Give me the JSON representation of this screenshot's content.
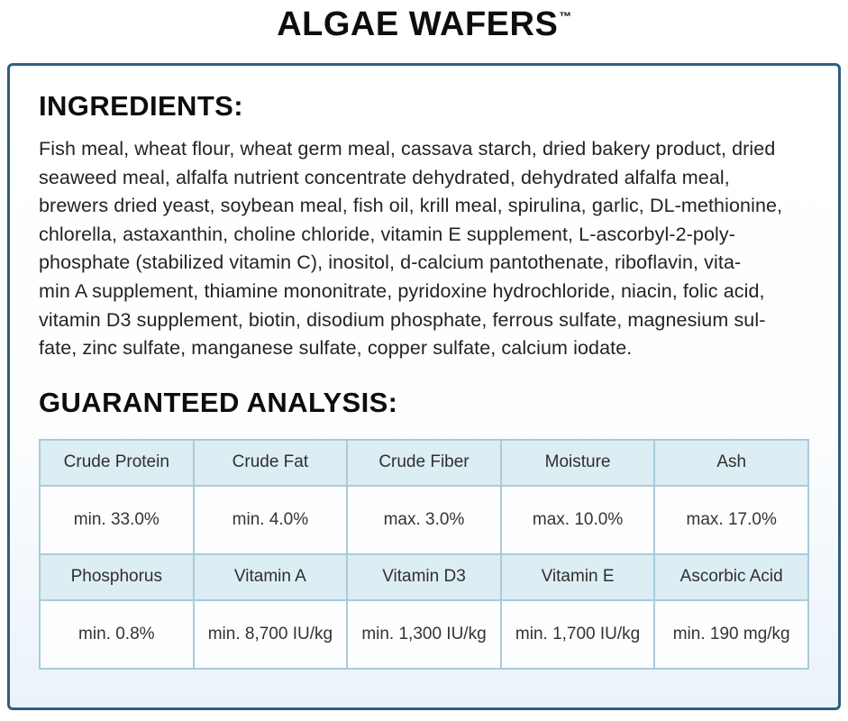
{
  "header": {
    "title": "ALGAE WAFERS",
    "trademark": "™"
  },
  "ingredients": {
    "heading": "INGREDIENTS:",
    "lines": [
      "Fish meal, wheat flour, wheat germ meal, cassava starch, dried bakery product, dried",
      "seaweed meal, alfalfa nutrient concentrate dehydrated, dehydrated alfalfa meal,",
      "brewers dried yeast, soybean meal, fish oil, krill meal, spirulina, garlic, DL-methionine,",
      "chlorella, astaxanthin, choline chloride, vitamin E supplement, L-ascorbyl-2-poly-",
      "phosphate (stabilized vitamin C), inositol, d-calcium pantothenate, riboflavin, vita-",
      "min A supplement, thiamine mononitrate, pyridoxine hydrochloride, niacin, folic acid,",
      "vitamin D3 supplement, biotin, disodium phosphate, ferrous sulfate, magnesium sul-",
      "fate, zinc sulfate, manganese sulfate, copper sulfate, calcium iodate."
    ]
  },
  "analysis": {
    "heading": "GUARANTEED ANALYSIS:",
    "rows": [
      [
        "Crude Protein",
        "Crude Fat",
        "Crude Fiber",
        "Moisture",
        "Ash"
      ],
      [
        "min. 33.0%",
        "min. 4.0%",
        "max. 3.0%",
        "max. 10.0%",
        "max. 17.0%"
      ],
      [
        "Phosphorus",
        "Vitamin A",
        "Vitamin D3",
        "Vitamin E",
        "Ascorbic Acid"
      ],
      [
        "min. 0.8%",
        "min. 8,700 IU/kg",
        "min. 1,300 IU/kg",
        "min. 1,700 IU/kg",
        "min. 190 mg/kg"
      ]
    ]
  },
  "colors": {
    "box_border": "#2e5f7e",
    "table_border": "#a9cbda",
    "table_header_bg": "#ddedf4",
    "table_cell_bg": "#fcfeff",
    "text": "#1b1b1b"
  }
}
